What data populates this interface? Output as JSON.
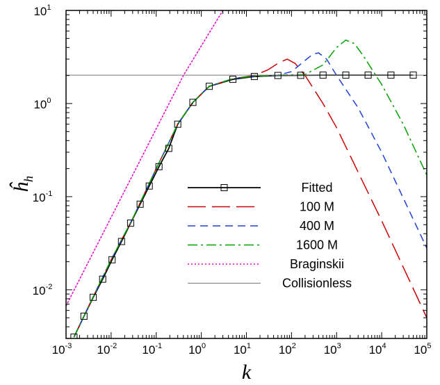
{
  "chart_data": {
    "type": "line",
    "xlabel": "k",
    "ylabel": "ĥ",
    "ylabel_sub": "h",
    "xscale": "log",
    "yscale": "log",
    "xlim": [
      0.001,
      100000
    ],
    "ylim": [
      0.003,
      10
    ],
    "grid": false,
    "legend_position": "center-right",
    "x_ticks": [
      {
        "base": "10",
        "exp": "-3"
      },
      {
        "base": "10",
        "exp": "-2"
      },
      {
        "base": "10",
        "exp": "-1"
      },
      {
        "base": "10",
        "exp": "0"
      },
      {
        "base": "10",
        "exp": "1"
      },
      {
        "base": "10",
        "exp": "2"
      },
      {
        "base": "10",
        "exp": "3"
      },
      {
        "base": "10",
        "exp": "4"
      },
      {
        "base": "10",
        "exp": "5"
      }
    ],
    "y_ticks": [
      {
        "base": "10",
        "exp": "-2"
      },
      {
        "base": "10",
        "exp": "-1"
      },
      {
        "base": "10",
        "exp": "0"
      },
      {
        "base": "10",
        "exp": "1"
      }
    ],
    "series": [
      {
        "name": "Fitted",
        "color": "#000000",
        "style": "solid",
        "marker": "square",
        "x": [
          0.0015,
          0.0025,
          0.004,
          0.0065,
          0.0105,
          0.017,
          0.027,
          0.044,
          0.07,
          0.115,
          0.19,
          0.3,
          0.65,
          1.5,
          5,
          15,
          50,
          160,
          500,
          1600,
          5000,
          16000,
          50000
        ],
        "y": [
          0.0031,
          0.0052,
          0.0083,
          0.013,
          0.021,
          0.033,
          0.052,
          0.083,
          0.13,
          0.21,
          0.33,
          0.6,
          1.03,
          1.53,
          1.82,
          1.95,
          2.0,
          2.01,
          2.02,
          2.02,
          2.02,
          2.02,
          2.02
        ]
      },
      {
        "name": "100 M",
        "color": "#cc0000",
        "style": "longdash",
        "x": [
          0.0015,
          0.003,
          0.01,
          0.03,
          0.1,
          0.3,
          0.65,
          1.5,
          5,
          15,
          30,
          50,
          80,
          120,
          200,
          500,
          1000,
          10000,
          100000
        ],
        "y": [
          0.0031,
          0.0063,
          0.021,
          0.058,
          0.2,
          0.6,
          1.03,
          1.53,
          1.85,
          2.0,
          2.3,
          2.7,
          3.0,
          2.7,
          2.0,
          1.0,
          0.55,
          0.055,
          0.005
        ]
      },
      {
        "name": "400 M",
        "color": "#1f3fd6",
        "style": "dash",
        "x": [
          0.0015,
          0.003,
          0.01,
          0.03,
          0.1,
          0.3,
          0.65,
          1.5,
          5,
          15,
          50,
          100,
          200,
          300,
          400,
          600,
          1000,
          3000,
          10000,
          100000
        ],
        "y": [
          0.0031,
          0.0063,
          0.021,
          0.058,
          0.2,
          0.6,
          1.03,
          1.53,
          1.85,
          1.97,
          2.02,
          2.2,
          2.9,
          3.4,
          3.5,
          3.0,
          2.0,
          0.9,
          0.3,
          0.028
        ]
      },
      {
        "name": "1600 M",
        "color": "#00a000",
        "style": "dashdot",
        "x": [
          0.0015,
          0.003,
          0.01,
          0.03,
          0.1,
          0.3,
          0.65,
          1.5,
          5,
          15,
          50,
          200,
          500,
          1000,
          1600,
          2500,
          4000,
          10000,
          30000,
          100000
        ],
        "y": [
          0.0031,
          0.0063,
          0.021,
          0.058,
          0.2,
          0.6,
          1.03,
          1.53,
          1.85,
          1.97,
          2.02,
          2.05,
          2.6,
          4.0,
          4.8,
          4.4,
          3.2,
          1.6,
          0.6,
          0.17
        ]
      },
      {
        "name": "Braginskii",
        "color": "#ee00cc",
        "style": "dot",
        "x": [
          0.001,
          0.4,
          3
        ],
        "y": [
          0.0067,
          2.0,
          10
        ]
      },
      {
        "name": "Collisionless",
        "color": "#777777",
        "style": "thin",
        "x": [
          0.001,
          100000
        ],
        "y": [
          2.02,
          2.02
        ]
      }
    ]
  }
}
